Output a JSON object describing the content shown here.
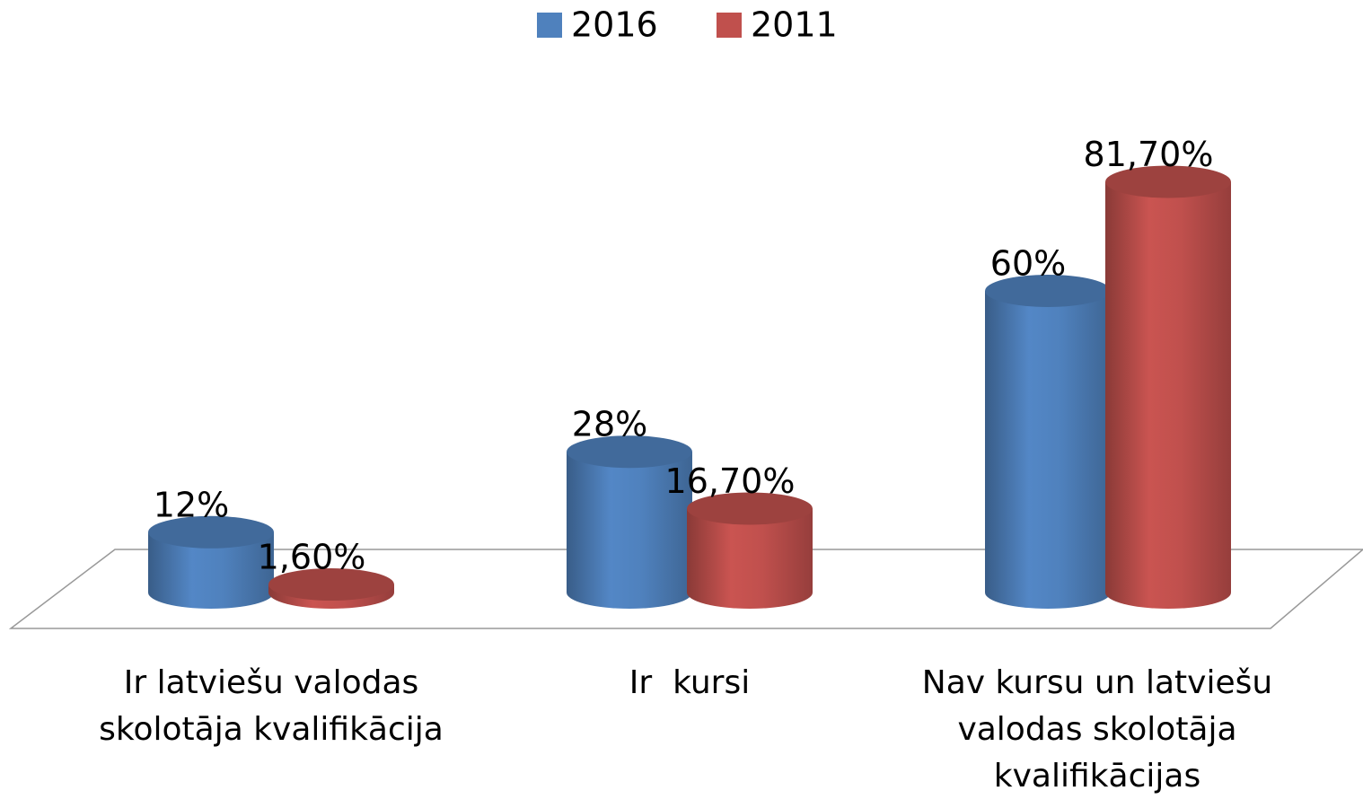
{
  "chart_data": {
    "type": "bar3d",
    "categories": [
      "Ir latviešu valodas skolotāja kvalifikācija",
      "Ir  kursi",
      "Nav kursu un latviešu valodas skolotāja kvalifikācijas"
    ],
    "series": [
      {
        "name": "2016",
        "color": "#4f81bd",
        "values": [
          12,
          28,
          60
        ],
        "value_labels": [
          "12%",
          "28%",
          "60%"
        ]
      },
      {
        "name": "2011",
        "color": "#c0504d",
        "values": [
          1.6,
          16.7,
          81.7
        ],
        "value_labels": [
          "1,60%",
          "16,70%",
          "81,70%"
        ]
      }
    ],
    "legend": "top"
  }
}
